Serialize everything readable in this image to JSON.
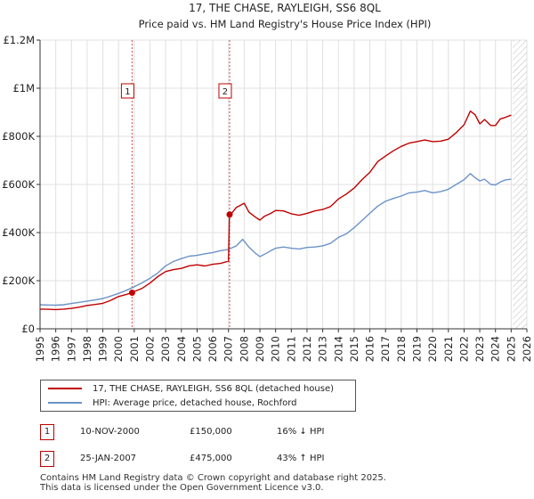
{
  "colors": {
    "property": "#c00000",
    "hpi": "#6b93c8",
    "grid": "#e0e0e0",
    "future_hatch": "#bbbbbb"
  },
  "chart_data": {
    "type": "line",
    "title": "17, THE CHASE, RAYLEIGH, SS6 8QL",
    "subtitle": "Price paid vs. HM Land Registry's House Price Index (HPI)",
    "xlabel": "",
    "ylabel": "",
    "xlim": [
      1995,
      2026
    ],
    "ylim": [
      0,
      1200000
    ],
    "y_ticks": [
      {
        "value": 0,
        "label": "£0"
      },
      {
        "value": 200000,
        "label": "£200K"
      },
      {
        "value": 400000,
        "label": "£400K"
      },
      {
        "value": 600000,
        "label": "£600K"
      },
      {
        "value": 800000,
        "label": "£800K"
      },
      {
        "value": 1000000,
        "label": "£1M"
      },
      {
        "value": 1200000,
        "label": "£1.2M"
      }
    ],
    "x_ticks": [
      "1995",
      "1996",
      "1997",
      "1998",
      "1999",
      "2000",
      "2001",
      "2002",
      "2003",
      "2004",
      "2005",
      "2006",
      "2007",
      "2008",
      "2009",
      "2010",
      "2011",
      "2012",
      "2013",
      "2014",
      "2015",
      "2016",
      "2017",
      "2018",
      "2019",
      "2020",
      "2021",
      "2022",
      "2023",
      "2024",
      "2025",
      "2026"
    ],
    "grid": true,
    "future_hatched_from": 2025.1,
    "series": [
      {
        "name": "17, THE CHASE, RAYLEIGH, SS6 8QL (detached house)",
        "x": [
          1995.0,
          1995.5,
          1996.0,
          1996.5,
          1997.0,
          1997.5,
          1998.0,
          1998.5,
          1999.0,
          1999.5,
          2000.0,
          2000.5,
          2000.86,
          2001.0,
          2001.5,
          2002.0,
          2002.5,
          2003.0,
          2003.5,
          2004.0,
          2004.5,
          2005.0,
          2005.5,
          2006.0,
          2006.5,
          2007.0,
          2007.06,
          2007.1,
          2007.5,
          2008.0,
          2008.3,
          2008.7,
          2009.0,
          2009.3,
          2009.7,
          2010.0,
          2010.5,
          2011.0,
          2011.5,
          2012.0,
          2012.5,
          2013.0,
          2013.5,
          2014.0,
          2014.5,
          2015.0,
          2015.5,
          2016.0,
          2016.5,
          2017.0,
          2017.5,
          2018.0,
          2018.5,
          2019.0,
          2019.5,
          2020.0,
          2020.5,
          2021.0,
          2021.5,
          2022.0,
          2022.4,
          2022.7,
          2023.0,
          2023.3,
          2023.7,
          2024.0,
          2024.3,
          2024.6,
          2025.0
        ],
        "values": [
          82000,
          81000,
          80000,
          82000,
          85000,
          90000,
          97000,
          101000,
          106000,
          118000,
          134000,
          143000,
          150000,
          155000,
          168000,
          190000,
          217000,
          238000,
          246000,
          251000,
          262000,
          266000,
          261000,
          268000,
          272000,
          281000,
          475000,
          472000,
          505000,
          522000,
          485000,
          465000,
          452000,
          468000,
          480000,
          492000,
          490000,
          478000,
          472000,
          480000,
          490000,
          496000,
          508000,
          540000,
          560000,
          585000,
          620000,
          650000,
          695000,
          718000,
          740000,
          758000,
          772000,
          778000,
          785000,
          778000,
          780000,
          788000,
          815000,
          848000,
          905000,
          890000,
          852000,
          870000,
          845000,
          845000,
          872000,
          878000,
          888000
        ]
      },
      {
        "name": "HPI: Average price, detached house, Rochford",
        "x": [
          1995.0,
          1995.5,
          1996.0,
          1996.5,
          1997.0,
          1997.5,
          1998.0,
          1998.5,
          1999.0,
          1999.5,
          2000.0,
          2000.5,
          2001.0,
          2001.5,
          2002.0,
          2002.5,
          2003.0,
          2003.5,
          2004.0,
          2004.5,
          2005.0,
          2005.5,
          2006.0,
          2006.5,
          2007.0,
          2007.5,
          2007.9,
          2008.3,
          2008.7,
          2009.0,
          2009.3,
          2009.7,
          2010.0,
          2010.5,
          2011.0,
          2011.5,
          2012.0,
          2012.5,
          2013.0,
          2013.5,
          2014.0,
          2014.5,
          2015.0,
          2015.5,
          2016.0,
          2016.5,
          2017.0,
          2017.5,
          2018.0,
          2018.5,
          2019.0,
          2019.5,
          2020.0,
          2020.5,
          2021.0,
          2021.5,
          2022.0,
          2022.4,
          2022.7,
          2023.0,
          2023.3,
          2023.7,
          2024.0,
          2024.3,
          2024.6,
          2025.0
        ],
        "values": [
          100000,
          99000,
          98000,
          100000,
          105000,
          110000,
          115000,
          120000,
          126000,
          136000,
          147000,
          160000,
          175000,
          191000,
          210000,
          232000,
          262000,
          280000,
          292000,
          302000,
          305000,
          312000,
          317000,
          325000,
          330000,
          345000,
          372000,
          340000,
          315000,
          300000,
          310000,
          325000,
          335000,
          340000,
          335000,
          332000,
          338000,
          340000,
          345000,
          355000,
          380000,
          395000,
          420000,
          450000,
          480000,
          510000,
          530000,
          542000,
          552000,
          565000,
          568000,
          575000,
          565000,
          570000,
          580000,
          600000,
          620000,
          645000,
          628000,
          615000,
          622000,
          600000,
          598000,
          610000,
          618000,
          622000
        ]
      }
    ],
    "sale_markers": [
      {
        "label": "1",
        "x": 2000.86,
        "value": 150000
      },
      {
        "label": "2",
        "x": 2007.07,
        "value": 475000
      }
    ]
  },
  "legend": [
    {
      "label": "17, THE CHASE, RAYLEIGH, SS6 8QL (detached house)"
    },
    {
      "label": "HPI: Average price, detached house, Rochford"
    }
  ],
  "sales_table": [
    {
      "num": "1",
      "date": "10-NOV-2000",
      "price": "£150,000",
      "change": "16% ↓ HPI"
    },
    {
      "num": "2",
      "date": "25-JAN-2007",
      "price": "£475,000",
      "change": "43% ↑ HPI"
    }
  ],
  "footer": {
    "line1": "Contains HM Land Registry data © Crown copyright and database right 2025.",
    "line2": "This data is licensed under the Open Government Licence v3.0."
  }
}
